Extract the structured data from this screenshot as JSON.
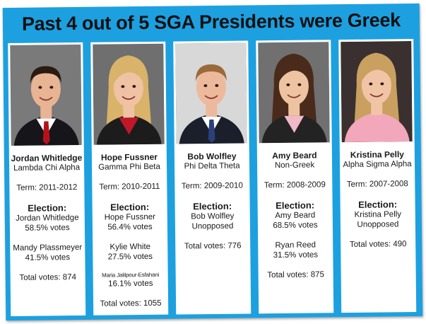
{
  "title": "Past 4 out of 5 SGA Presidents were Greek",
  "presidents": [
    {
      "name": "Jordan Whitledge",
      "affiliation": "Lambda Chi Alpha",
      "term": "Term: 2011-2012",
      "election_label": "Election:",
      "winner": "Jordan Whitledge",
      "winner_votes": "58.5% votes",
      "runner_up": "Mandy Plassmeyer",
      "runner_up_votes": "41.5% votes",
      "total": "Total votes: 874",
      "photo": {
        "hair": "#2a1a10",
        "skin": "#e8b494",
        "bg": "#7a7a7a",
        "suit": "#15151a",
        "shirt": "#ffffff",
        "tie": "#b5121b"
      }
    },
    {
      "name": "Hope Fussner",
      "affiliation": "Gamma Phi Beta",
      "term": "Term: 2010-2011",
      "election_label": "Election:",
      "winner": "Hope Fussner",
      "winner_votes": "56.4% votes",
      "runner_up": "Kylie White",
      "runner_up_votes": "27.5% votes",
      "third": "Maria Jalilpour-Esfahani",
      "third_votes": "16.1% votes",
      "total": "Total votes: 1055",
      "photo": {
        "hair": "#d9b36a",
        "skin": "#f0c2a4",
        "bg": "#6f6f6f",
        "suit": "#1c1c1c",
        "shirt": "#c0182a",
        "tie": "#c0182a"
      }
    },
    {
      "name": "Bob Wolfley",
      "affiliation": "Phi Delta Theta",
      "term": "Term: 2009-2010",
      "election_label": "Election:",
      "winner": "Bob Wolfley",
      "winner_votes": "Unopposed",
      "total": "Total votes: 776",
      "photo": {
        "hair": "#9a6a3a",
        "skin": "#edb99c",
        "bg": "#d8d8d8",
        "suit": "#1a1f2b",
        "shirt": "#ffffff",
        "tie": "#2b3f7a"
      }
    },
    {
      "name": "Amy Beard",
      "affiliation": "Non-Greek",
      "term": "Term: 2008-2009",
      "election_label": "Election:",
      "winner": "Amy Beard",
      "winner_votes": "68.5% votes",
      "runner_up": "Ryan Reed",
      "runner_up_votes": "31.5% votes",
      "total": "Total votes: 875",
      "photo": {
        "hair": "#4a2a1a",
        "skin": "#eec3a2",
        "bg": "#707070",
        "suit": "#232323",
        "shirt": "#f2b9c8",
        "tie": "#f2b9c8"
      }
    },
    {
      "name": "Kristina Pelly",
      "affiliation": "Alpha Sigma Alpha",
      "term": "Term: 2007-2008",
      "election_label": "Election:",
      "winner": "Kristina Pelly",
      "winner_votes": "Unopposed",
      "total": "Total votes: 490",
      "photo": {
        "hair": "#c9a060",
        "skin": "#f1c4a6",
        "bg": "#3a3030",
        "suit": "#f3a7bb",
        "shirt": "#f3a7bb",
        "tie": "#f3a7bb"
      }
    }
  ]
}
